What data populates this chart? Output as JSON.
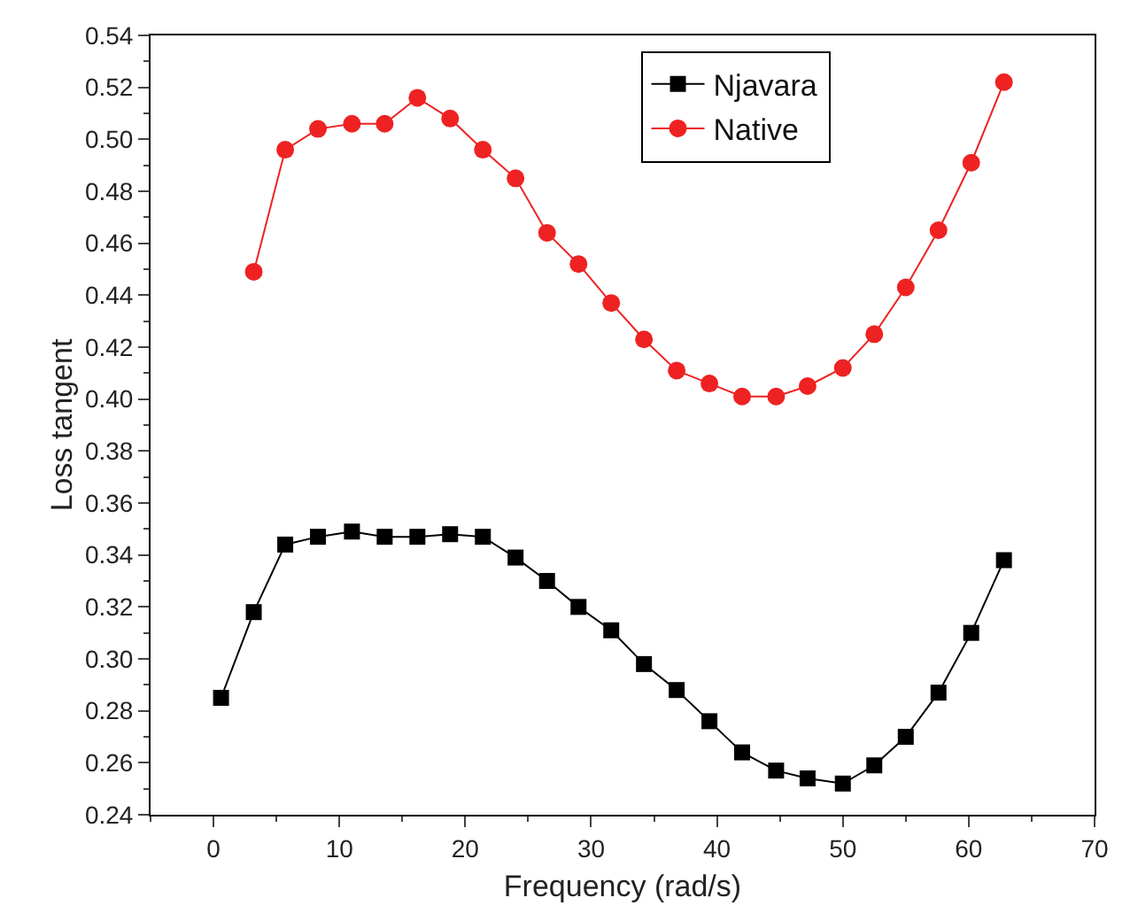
{
  "chart_data": {
    "type": "line",
    "xlabel": "Frequency (rad/s)",
    "ylabel": "Loss tangent",
    "xlim": [
      -5,
      70
    ],
    "xticks": [
      0,
      10,
      20,
      30,
      40,
      50,
      60,
      70
    ],
    "ylim": [
      0.24,
      0.54
    ],
    "yticks": [
      {
        "value": 0.24,
        "label": "0.24"
      },
      {
        "value": 0.26,
        "label": "0.26"
      },
      {
        "value": 0.28,
        "label": "0.28"
      },
      {
        "value": 0.3,
        "label": "0.30"
      },
      {
        "value": 0.32,
        "label": "0.32"
      },
      {
        "value": 0.34,
        "label": "0.34"
      },
      {
        "value": 0.36,
        "label": "0.36"
      },
      {
        "value": 0.38,
        "label": "0.38"
      },
      {
        "value": 0.4,
        "label": "0.40"
      },
      {
        "value": 0.42,
        "label": "0.42"
      },
      {
        "value": 0.44,
        "label": "0.44"
      },
      {
        "value": 0.46,
        "label": "0.46"
      },
      {
        "value": 0.48,
        "label": "0.48"
      },
      {
        "value": 0.5,
        "label": "0.50"
      },
      {
        "value": 0.52,
        "label": "0.52"
      },
      {
        "value": 0.54,
        "label": "0.54"
      }
    ],
    "legend": "top right",
    "series": [
      {
        "name": "Njavara",
        "color": "#000000",
        "marker": "square",
        "x": [
          0.6,
          3.2,
          5.7,
          8.3,
          11,
          13.6,
          16.2,
          18.8,
          21.4,
          24,
          26.5,
          29,
          31.6,
          34.2,
          36.8,
          39.4,
          42,
          44.7,
          47.2,
          50,
          52.5,
          55,
          57.6,
          60.2,
          62.8
        ],
        "values": [
          0.285,
          0.318,
          0.344,
          0.347,
          0.349,
          0.347,
          0.347,
          0.348,
          0.347,
          0.339,
          0.33,
          0.32,
          0.311,
          0.298,
          0.288,
          0.276,
          0.264,
          0.257,
          0.254,
          0.252,
          0.259,
          0.27,
          0.287,
          0.31,
          0.338
        ]
      },
      {
        "name": "Native",
        "color": "#ee2222",
        "marker": "circle",
        "x": [
          3.2,
          5.7,
          8.3,
          11,
          13.6,
          16.2,
          18.8,
          21.4,
          24,
          26.5,
          29,
          31.6,
          34.2,
          36.8,
          39.4,
          42,
          44.7,
          47.2,
          50,
          52.5,
          55,
          57.6,
          60.2,
          62.8
        ],
        "values": [
          0.449,
          0.496,
          0.504,
          0.506,
          0.506,
          0.516,
          0.508,
          0.496,
          0.485,
          0.464,
          0.452,
          0.437,
          0.423,
          0.411,
          0.406,
          0.401,
          0.401,
          0.405,
          0.412,
          0.425,
          0.443,
          0.465,
          0.491,
          0.522
        ]
      }
    ]
  }
}
